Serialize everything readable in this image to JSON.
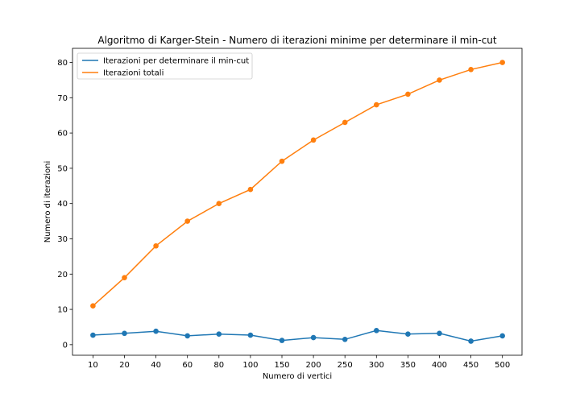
{
  "chart_data": {
    "type": "line",
    "title": "Algoritmo di Karger-Stein - Numero di iterazioni minime per determinare il min-cut",
    "xlabel": "Numero di vertici",
    "ylabel": "Numero di iterazioni",
    "categories": [
      "10",
      "20",
      "40",
      "60",
      "80",
      "100",
      "150",
      "200",
      "250",
      "300",
      "350",
      "400",
      "450",
      "500"
    ],
    "ylim": [
      -3,
      84
    ],
    "yticks": [
      0,
      10,
      20,
      30,
      40,
      50,
      60,
      70,
      80
    ],
    "grid": false,
    "legend_position": "top-left",
    "series": [
      {
        "name": "Iterazioni per determinare il min-cut",
        "color": "#1f77b4",
        "values": [
          2.7,
          3.2,
          3.8,
          2.5,
          3.0,
          2.7,
          1.2,
          2.0,
          1.5,
          4.0,
          3.0,
          3.2,
          1.0,
          2.5
        ]
      },
      {
        "name": "Iterazioni totali",
        "color": "#ff7f0e",
        "values": [
          11,
          19,
          28,
          35,
          40,
          44,
          52,
          58,
          63,
          68,
          71,
          75,
          78,
          80
        ]
      }
    ]
  }
}
